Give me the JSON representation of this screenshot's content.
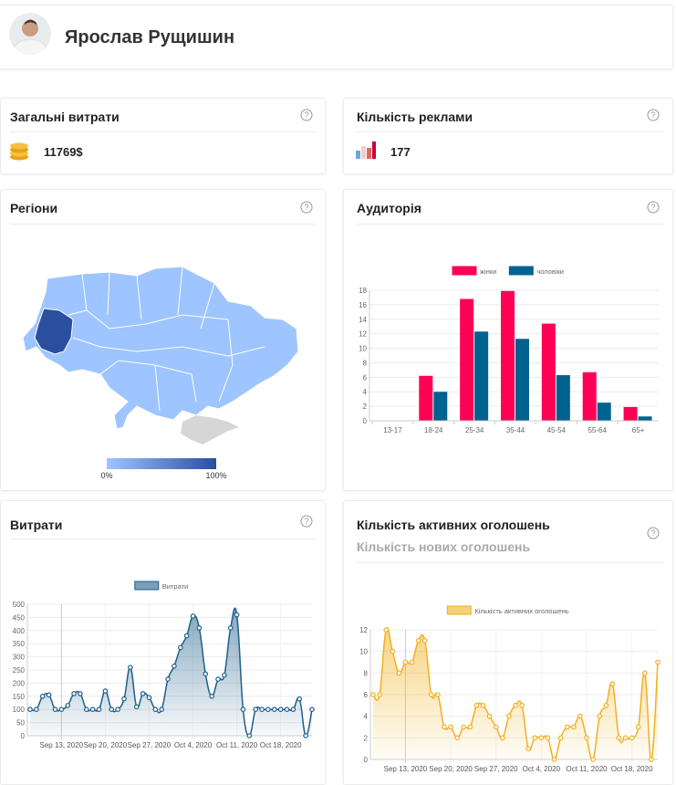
{
  "header": {
    "name": "Ярослав Рущишин"
  },
  "help": "?",
  "stats": [
    {
      "title": "Загальні витрати",
      "value": "11769$"
    },
    {
      "title": "Кількість реклами",
      "value": "177"
    }
  ],
  "regions": {
    "title": "Регіони",
    "legend_min": "0%",
    "legend_max": "100%"
  },
  "chart_data": [
    {
      "type": "bar",
      "title": "Аудиторія",
      "categories": [
        "13-17",
        "18-24",
        "25-34",
        "35-44",
        "45-54",
        "55-64",
        "65+"
      ],
      "series": [
        {
          "name": "жінки",
          "color": "#ff0055",
          "values": [
            0,
            6.2,
            16.8,
            17.9,
            13.4,
            6.7,
            1.9
          ]
        },
        {
          "name": "чоловіки",
          "color": "#00628f",
          "values": [
            0,
            4,
            12.3,
            11.3,
            6.3,
            2.5,
            0.6
          ]
        }
      ],
      "ylim": [
        0,
        18
      ],
      "yticks": [
        0,
        2,
        4,
        6,
        8,
        10,
        12,
        14,
        16,
        18
      ],
      "grid": true
    },
    {
      "type": "line",
      "title": "Витрати",
      "categories": [
        null,
        null,
        null,
        null,
        null,
        "Sep 13, 2020",
        null,
        null,
        null,
        null,
        null,
        null,
        "Sep 20, 2020",
        null,
        null,
        null,
        null,
        null,
        null,
        "Sep 27, 2020",
        null,
        null,
        null,
        null,
        null,
        null,
        "Oct 4, 2020",
        null,
        null,
        null,
        null,
        null,
        null,
        "Oct 11, 2020",
        null,
        null,
        null,
        null,
        null,
        null,
        "Oct 18, 2020",
        null,
        null,
        null,
        null,
        null
      ],
      "series": [
        {
          "name": "Витрати",
          "color": "#1f5f8b",
          "values": [
            100,
            100,
            150,
            155,
            100,
            100,
            115,
            160,
            160,
            100,
            100,
            100,
            170,
            100,
            100,
            140,
            260,
            110,
            160,
            145,
            100,
            100,
            215,
            265,
            335,
            380,
            455,
            410,
            235,
            150,
            215,
            230,
            410,
            460,
            100,
            0,
            100,
            100,
            100,
            100,
            100,
            100,
            100,
            140,
            0,
            100
          ]
        }
      ],
      "ylim": [
        0,
        500
      ],
      "yticks": [
        0,
        50,
        100,
        150,
        200,
        250,
        300,
        350,
        400,
        450,
        500
      ],
      "grid": true
    },
    {
      "type": "line",
      "title": "Кількість активних оголошень",
      "subtitle": "Кількість нових оголошень",
      "categories": [
        null,
        null,
        null,
        null,
        null,
        "Sep 13, 2020",
        null,
        null,
        null,
        null,
        null,
        null,
        "Sep 20, 2020",
        null,
        null,
        null,
        null,
        null,
        null,
        "Sep 27, 2020",
        null,
        null,
        null,
        null,
        null,
        null,
        "Oct 4, 2020",
        null,
        null,
        null,
        null,
        null,
        null,
        "Oct 11, 2020",
        null,
        null,
        null,
        null,
        null,
        null,
        "Oct 18, 2020",
        null,
        null,
        null,
        null
      ],
      "series": [
        {
          "name": "Кількість активних оголошень",
          "color": "#f2b01e",
          "values": [
            6,
            6,
            12,
            10,
            8,
            9,
            9,
            11,
            11,
            6,
            6,
            3,
            3,
            2,
            3,
            3,
            5,
            5,
            4,
            3,
            2,
            4,
            5,
            5,
            1,
            2,
            2,
            2,
            0,
            2,
            3,
            3,
            4,
            2,
            0,
            4,
            5,
            7,
            2,
            2,
            2,
            3,
            8,
            0,
            9
          ]
        }
      ],
      "ylim": [
        0,
        12
      ],
      "yticks": [
        0,
        2,
        4,
        6,
        8,
        10,
        12
      ],
      "grid": true
    }
  ]
}
